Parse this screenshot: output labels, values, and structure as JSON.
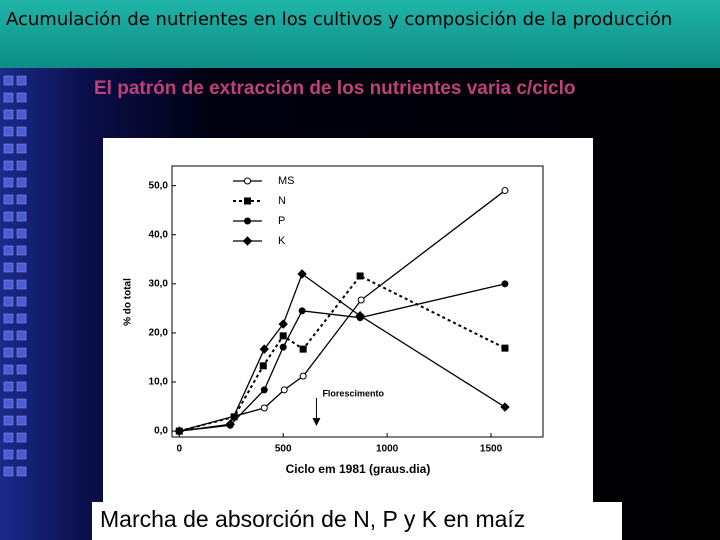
{
  "slide": {
    "title": "Acumulación de nutrientes en los cultivos y  composición de la producción",
    "subtitle": "El patrón de extracción de los nutrientes varia c/ciclo",
    "caption": "Marcha de absorción de N, P y K en maíz"
  },
  "chart_data": {
    "type": "line",
    "x_label": "Ciclo em 1981 (graus.dia)",
    "y_label": "% do total",
    "annotation": "Florescimento",
    "annotation_x": 660,
    "xlim": [
      -35,
      1750
    ],
    "ylim": [
      -1.2,
      54
    ],
    "xticks": [
      0,
      500,
      1000,
      1500
    ],
    "yticks": [
      {
        "value": 0,
        "label": "0,0"
      },
      {
        "value": 10,
        "label": "10,0"
      },
      {
        "value": 20,
        "label": "20,0"
      },
      {
        "value": 30,
        "label": "30,0"
      },
      {
        "value": 40,
        "label": "40,0"
      },
      {
        "value": 50,
        "label": "50,0"
      }
    ],
    "series": [
      {
        "name": "MS",
        "color": "#000000",
        "marker": "open-circle",
        "dash": "solid",
        "x": [
          0,
          409,
          505,
          596,
          875,
          1567
        ],
        "values": [
          0,
          4.7,
          8.4,
          11.2,
          26.7,
          49
        ]
      },
      {
        "name": "N",
        "color": "#000000",
        "marker": "square",
        "dash": "dashed",
        "x": [
          0,
          264,
          404,
          500,
          596,
          870,
          1567
        ],
        "values": [
          0,
          2.9,
          13.3,
          19.4,
          16.7,
          31.6,
          16.9
        ]
      },
      {
        "name": "P",
        "color": "#000000",
        "marker": "circle",
        "dash": "solid",
        "x": [
          0,
          245,
          409,
          500,
          591,
          870,
          1567
        ],
        "values": [
          0,
          1.2,
          8.4,
          17.1,
          24.5,
          23.1,
          30
        ]
      },
      {
        "name": "K",
        "color": "#000000",
        "marker": "diamond",
        "dash": "solid",
        "x": [
          0,
          245,
          409,
          500,
          591,
          870,
          1567
        ],
        "values": [
          0,
          1.4,
          16.7,
          21.8,
          32,
          23.5,
          4.9
        ]
      }
    ]
  }
}
